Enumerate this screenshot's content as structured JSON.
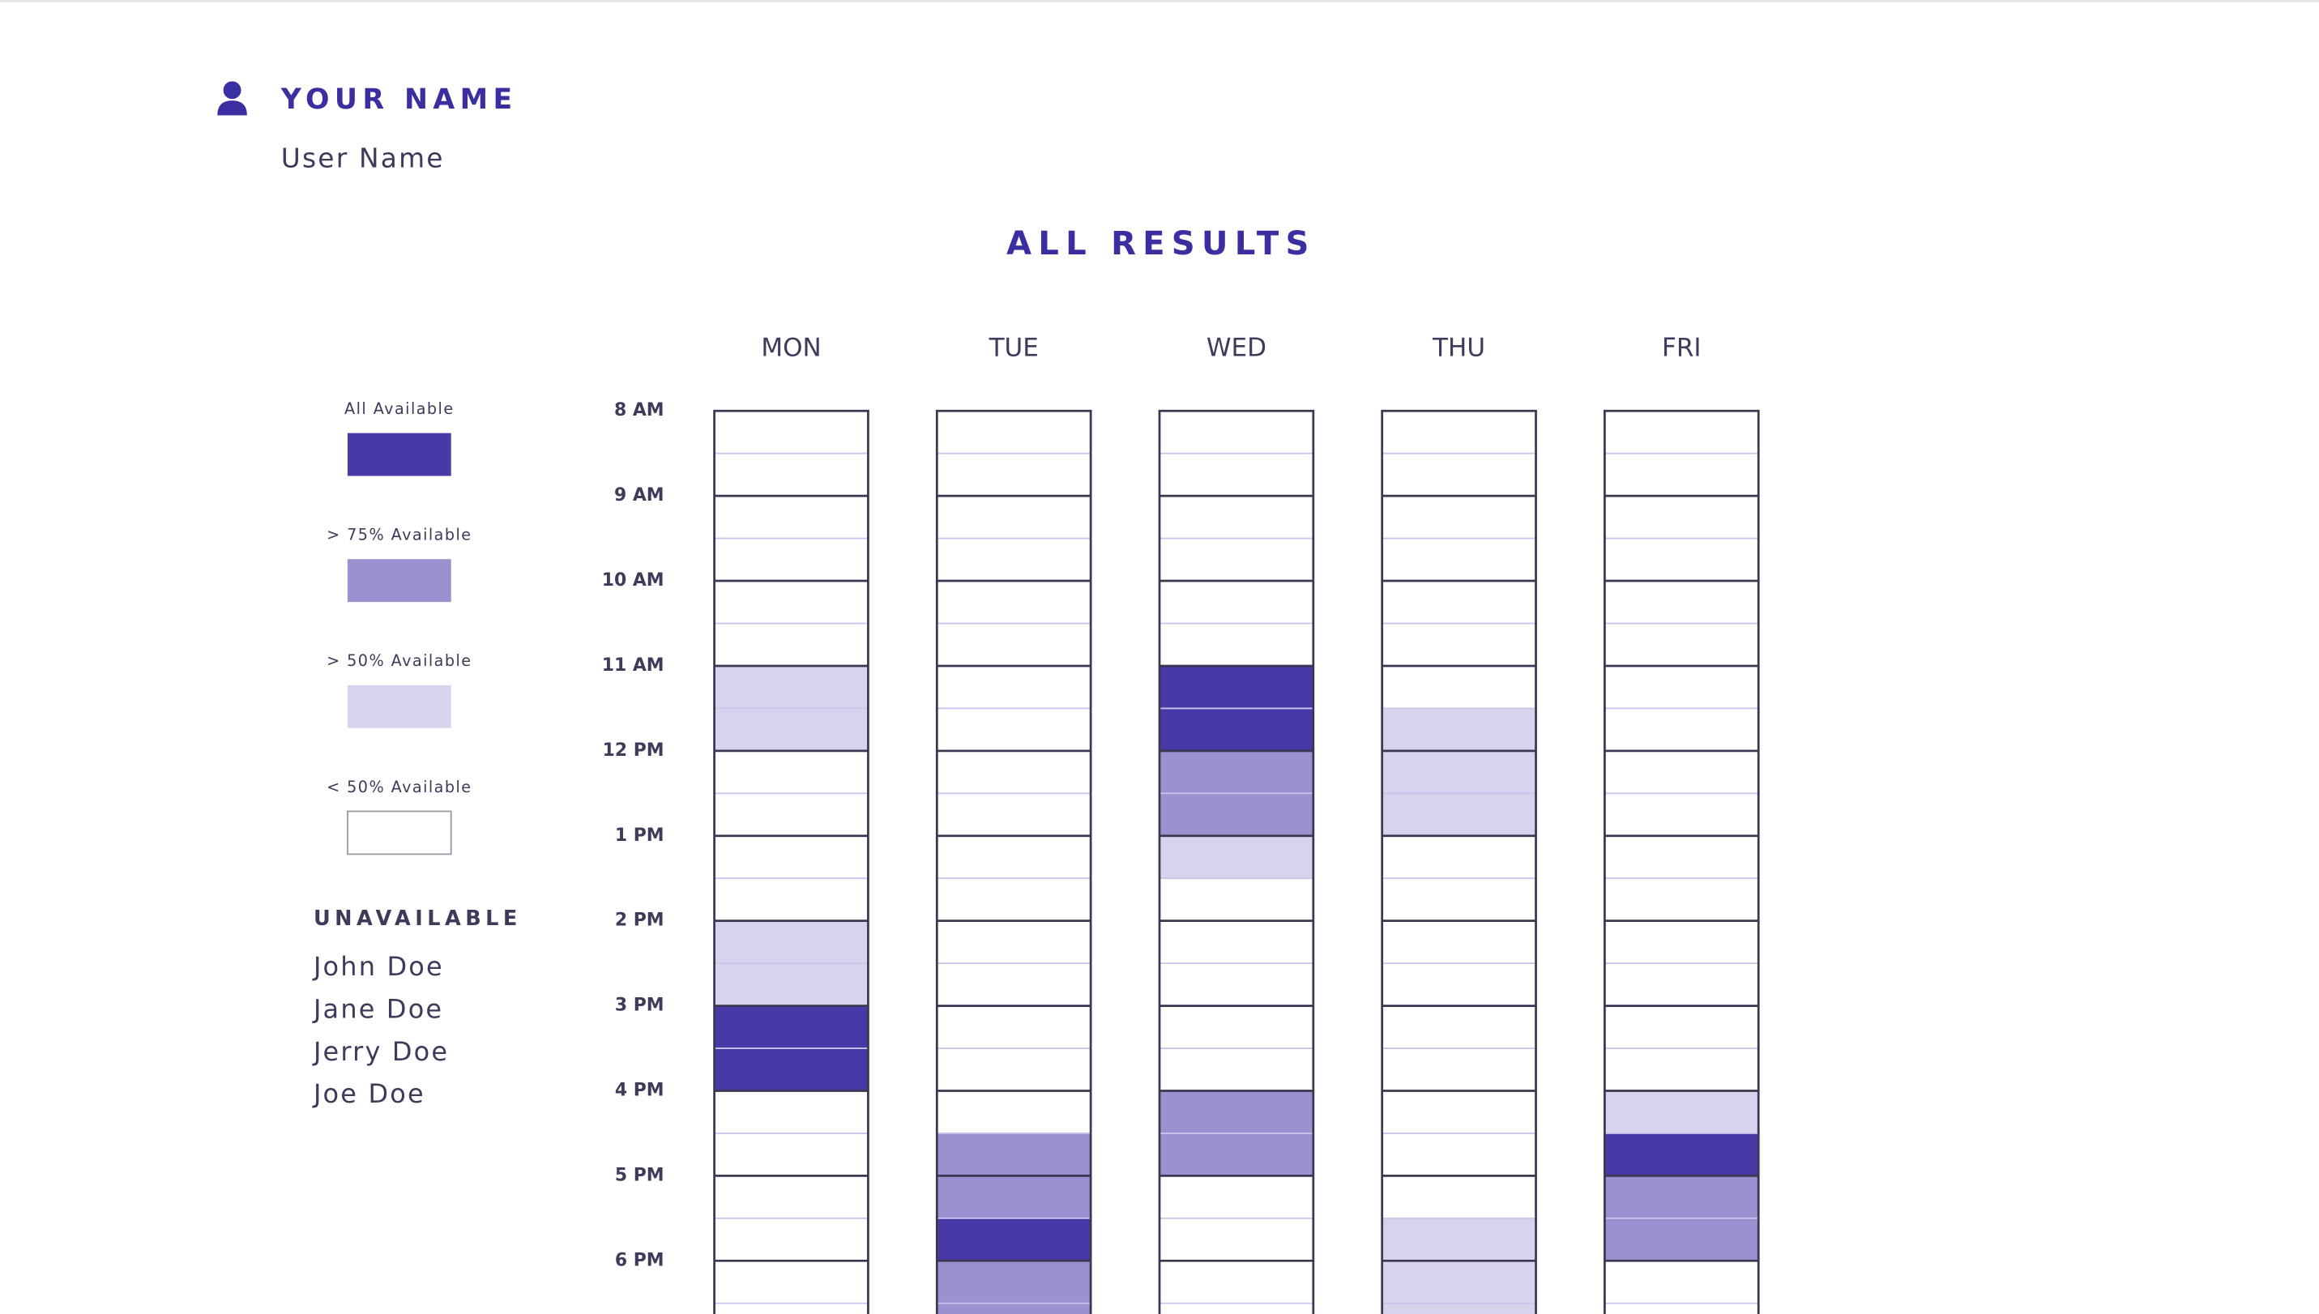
{
  "header": {
    "title": "YOUR NAME",
    "subtitle": "User Name"
  },
  "title": "ALL RESULTS",
  "legend": [
    {
      "label": "All Available",
      "color": "#473aa6"
    },
    {
      "label": "> 75% Available",
      "color": "#9991d0"
    },
    {
      "label": "> 50% Available",
      "color": "#d7d3ec"
    },
    {
      "label": "< 50% Available",
      "color": "#ffffff"
    }
  ],
  "unavailable": {
    "title": "UNAVAILABLE",
    "names": [
      "John Doe",
      "Jane Doe",
      "Jerry Doe",
      "Joe Doe"
    ]
  },
  "times": [
    "8 AM",
    "9 AM",
    "10 AM",
    "11 AM",
    "12 PM",
    "1 PM",
    "2 PM",
    "3 PM",
    "4 PM",
    "5 PM",
    "6 PM"
  ],
  "days": [
    {
      "name": "MON",
      "slots": [
        3,
        3,
        3,
        3,
        3,
        3,
        2,
        2,
        3,
        3,
        3,
        3,
        2,
        2,
        0,
        0,
        3,
        3,
        3,
        3,
        3,
        3
      ]
    },
    {
      "name": "TUE",
      "slots": [
        3,
        3,
        3,
        3,
        3,
        3,
        3,
        3,
        3,
        3,
        3,
        3,
        3,
        3,
        3,
        3,
        3,
        1,
        1,
        0,
        1,
        1
      ]
    },
    {
      "name": "WED",
      "slots": [
        3,
        3,
        3,
        3,
        3,
        3,
        0,
        0,
        1,
        1,
        2,
        3,
        3,
        3,
        3,
        3,
        1,
        1,
        3,
        3,
        3,
        3
      ]
    },
    {
      "name": "THU",
      "slots": [
        3,
        3,
        3,
        3,
        3,
        3,
        3,
        2,
        2,
        2,
        3,
        3,
        3,
        3,
        3,
        3,
        3,
        3,
        3,
        2,
        2,
        2
      ]
    },
    {
      "name": "FRI",
      "slots": [
        3,
        3,
        3,
        3,
        3,
        3,
        3,
        3,
        3,
        3,
        3,
        3,
        3,
        3,
        3,
        3,
        2,
        0,
        1,
        1,
        3,
        3
      ]
    }
  ]
}
